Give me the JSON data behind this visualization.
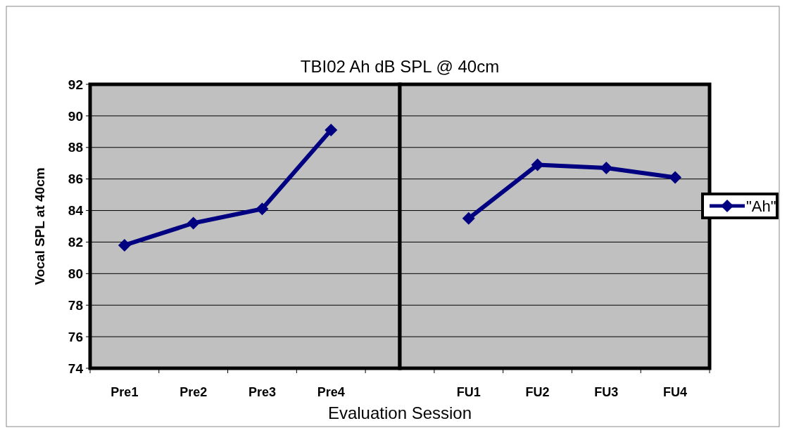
{
  "chart_data": [
    {
      "type": "line",
      "title": "TBI02 Ah dB SPL @ 40cm",
      "xlabel": "Evaluation Session",
      "ylabel": "Vocal SPL at 40cm",
      "categories": [
        "Pre1",
        "Pre2",
        "Pre3",
        "Pre4"
      ],
      "series": [
        {
          "color": "#000080",
          "values": [
            81.8,
            83.2,
            84.1,
            89.1
          ]
        }
      ],
      "ylim": [
        74,
        92
      ],
      "yticks": [
        74,
        76,
        78,
        80,
        82,
        84,
        86,
        88,
        90,
        92
      ],
      "grid": "y",
      "marker": "diamond",
      "line_style": "solid"
    },
    {
      "type": "line",
      "categories": [
        "FU1",
        "FU2",
        "FU3",
        "FU4"
      ],
      "series": [
        {
          "name": "\"Ah\"",
          "color": "#000080",
          "values": [
            83.5,
            86.9,
            86.7,
            86.1
          ]
        }
      ],
      "ylim": [
        74,
        92
      ],
      "yticks": [
        74,
        76,
        78,
        80,
        82,
        84,
        86,
        88,
        90,
        92
      ],
      "tick_labels": "x",
      "grid": "y",
      "legend": "right",
      "marker": "diamond",
      "line_style": "solid"
    }
  ]
}
